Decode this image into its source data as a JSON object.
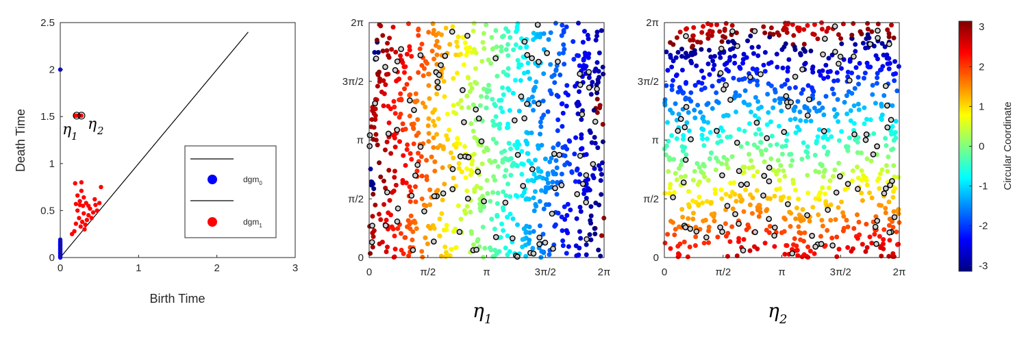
{
  "chart_data": [
    {
      "type": "scatter",
      "xlabel": "Birth Time",
      "ylabel": "Death Time",
      "xlim": [
        0,
        3
      ],
      "ylim": [
        0,
        2.5
      ],
      "xticks": [
        "0",
        "1",
        "2",
        "3"
      ],
      "yticks": [
        "0",
        "0.5",
        "1",
        "1.5",
        "2",
        "2.5"
      ],
      "diagonal": [
        [
          0,
          0
        ],
        [
          2.4,
          2.4
        ]
      ],
      "annotations": [
        "η1",
        "η2"
      ],
      "legend_position": "bottom-right",
      "series": [
        {
          "name": "dgm0",
          "color": "#0000ff",
          "points": [
            [
              0,
              2.0
            ],
            [
              0,
              0.19
            ],
            [
              0,
              0.17
            ],
            [
              0,
              0.16
            ],
            [
              0,
              0.15
            ],
            [
              0,
              0.14
            ],
            [
              0,
              0.13
            ],
            [
              0,
              0.12
            ],
            [
              0,
              0.11
            ],
            [
              0,
              0.1
            ],
            [
              0,
              0.09
            ],
            [
              0,
              0.08
            ],
            [
              0,
              0.07
            ],
            [
              0,
              0.06
            ],
            [
              0,
              0.05
            ],
            [
              0,
              0.04
            ],
            [
              0,
              0.03
            ],
            [
              0,
              0.02
            ],
            [
              0,
              0.01
            ],
            [
              0,
              0.0
            ]
          ]
        },
        {
          "name": "dgm1",
          "color": "#ff0000",
          "points": [
            [
              0.19,
              1.51
            ],
            [
              0.21,
              1.51
            ],
            [
              0.24,
              1.51
            ],
            [
              0.27,
              1.51
            ],
            [
              0.19,
              0.79
            ],
            [
              0.27,
              0.71
            ],
            [
              0.22,
              0.66
            ],
            [
              0.3,
              0.64
            ],
            [
              0.25,
              0.6
            ],
            [
              0.2,
              0.57
            ],
            [
              0.29,
              0.55
            ],
            [
              0.33,
              0.58
            ],
            [
              0.38,
              0.52
            ],
            [
              0.45,
              0.56
            ],
            [
              0.5,
              0.58
            ],
            [
              0.52,
              0.75
            ],
            [
              0.42,
              0.48
            ],
            [
              0.36,
              0.45
            ],
            [
              0.3,
              0.47
            ],
            [
              0.24,
              0.42
            ],
            [
              0.28,
              0.38
            ],
            [
              0.34,
              0.4
            ],
            [
              0.4,
              0.42
            ],
            [
              0.47,
              0.5
            ],
            [
              0.22,
              0.5
            ],
            [
              0.26,
              0.33
            ],
            [
              0.32,
              0.35
            ],
            [
              0.18,
              0.28
            ],
            [
              0.15,
              0.25
            ],
            [
              0.2,
              0.36
            ],
            [
              0.36,
              0.55
            ],
            [
              0.44,
              0.62
            ],
            [
              0.27,
              0.8
            ],
            [
              0.25,
              0.56
            ],
            [
              0.31,
              0.3
            ]
          ]
        }
      ]
    },
    {
      "type": "scatter",
      "xlabel": "η1",
      "ylabel": "",
      "xlim": [
        0,
        6.283
      ],
      "ylim": [
        0,
        6.283
      ],
      "xticks": [
        "0",
        "π/2",
        "π",
        "3π/2",
        "2π"
      ],
      "yticks": [
        "0",
        "π/2",
        "π",
        "3π/2",
        "2π"
      ],
      "color_by": "x",
      "n_points": 1000,
      "n_landmarks": 100
    },
    {
      "type": "scatter",
      "xlabel": "η2",
      "ylabel": "",
      "xlim": [
        0,
        6.283
      ],
      "ylim": [
        0,
        6.283
      ],
      "xticks": [
        "0",
        "π/2",
        "π",
        "3π/2",
        "2π"
      ],
      "yticks": [
        "0",
        "π/2",
        "π",
        "3π/2",
        "2π"
      ],
      "color_by": "y",
      "n_points": 1000,
      "n_landmarks": 100
    }
  ],
  "colorbar": {
    "label": "Circular Coordinate",
    "colormap": "jet",
    "range": [
      -3.1416,
      3.1416
    ],
    "ticks": [
      "3",
      "2",
      "1",
      "0",
      "-1",
      "-2",
      "-3"
    ]
  }
}
